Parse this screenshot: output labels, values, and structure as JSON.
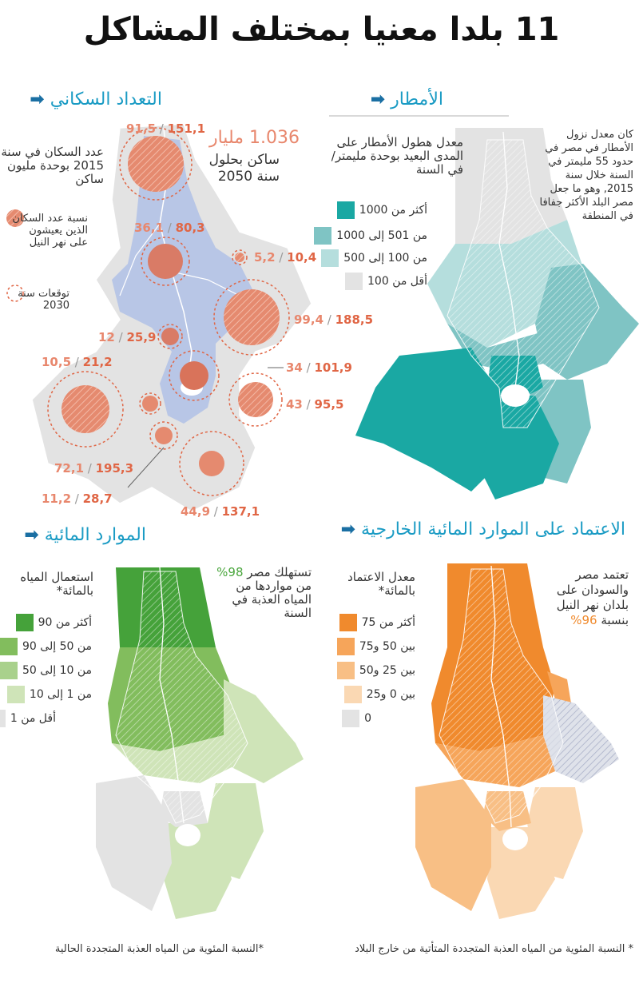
{
  "title": "11 بلدا معنيا بمختلف المشاكل",
  "arrow": "➡",
  "population": {
    "heading": "التعداد السكاني",
    "legend_pop": "عدد السكان في سنة 2015 بوحدة مليون ساكن",
    "legend_nile": "نسبة عدد السكان الذين يعيشون على نهر النيل",
    "legend_2030": "توقعات سنة 2030",
    "headline_value": "1.036 مليار",
    "headline_text": "ساكن بحلول سنة 2050",
    "labels": [
      {
        "a": "91,5",
        "b": "151,1"
      },
      {
        "a": "36,1",
        "b": "80,3"
      },
      {
        "a": "5,2",
        "b": "10,4"
      },
      {
        "a": "99,4",
        "b": "188,5"
      },
      {
        "a": "12",
        "b": "25,9"
      },
      {
        "a": "34",
        "b": "101,9"
      },
      {
        "a": "10,5",
        "b": "21,2"
      },
      {
        "a": "43",
        "b": "95,5"
      },
      {
        "a": "72,1",
        "b": "195,3"
      },
      {
        "a": "11,2",
        "b": "28,7"
      },
      {
        "a": "44,9",
        "b": "137,1"
      }
    ]
  },
  "rainfall": {
    "heading": "الأمطار",
    "legend_title": "معدل هطول الأمطار على المدى البعيد بوحدة مليمتر/ في السنة",
    "note": "كان معدل نزول الأمطار في مصر في حدود 55 مليمتر في السنة خلال سنة 2015, وهو ما جعل مصر البلد الأكثر جفافا في المنطقة",
    "legend": [
      {
        "label": "أكثر من 1000",
        "color": "#1aa8a3"
      },
      {
        "label": "من 501 إلى 1000",
        "color": "#7fc4c4"
      },
      {
        "label": "من 100 إلى 500",
        "color": "#b5dedd"
      },
      {
        "label": "أقل من 100",
        "color": "#e3e3e3"
      }
    ]
  },
  "water": {
    "heading": "الموارد المائية",
    "legend_title": "استعمال المياه بالمائة*",
    "note_pre": "تستهلك مصر",
    "note_pct": "98%",
    "note_post": "من مواردها من المياه العذبة في السنة",
    "legend": [
      {
        "label": "أكثر من 90",
        "color": "#45a23a"
      },
      {
        "label": "من 50 إلى 90",
        "color": "#82bd5d"
      },
      {
        "label": "من 10 إلى 50",
        "color": "#a9d18c"
      },
      {
        "label": "من 1 إلى 10",
        "color": "#cfe4b8"
      },
      {
        "label": "أقل من 1",
        "color": "#e3e3e3"
      }
    ],
    "footnote": "*النسبة المئوية من المياه العذبة المتجددة الحالية"
  },
  "dependency": {
    "heading": "الاعتماد على الموارد المائية الخارجية",
    "legend_title": "معدل الاعتماد بالمائة*",
    "note_pre": "تعتمد مصر والسودان على بلدان نهر النيل بنسبة",
    "note_pct": "96%",
    "legend": [
      {
        "label": "أكثر من 75",
        "color": "#f08a2d"
      },
      {
        "label": "بين 50 و75",
        "color": "#f6a55a"
      },
      {
        "label": "بين 25 و50",
        "color": "#f8bf85"
      },
      {
        "label": "بين 0 و25",
        "color": "#fad8b3"
      },
      {
        "label": "0",
        "color": "#e3e3e3"
      }
    ],
    "footnote": "* النسبة المئوية من المياه العذبة المتجددة المتأتية من خارج البلاد"
  }
}
